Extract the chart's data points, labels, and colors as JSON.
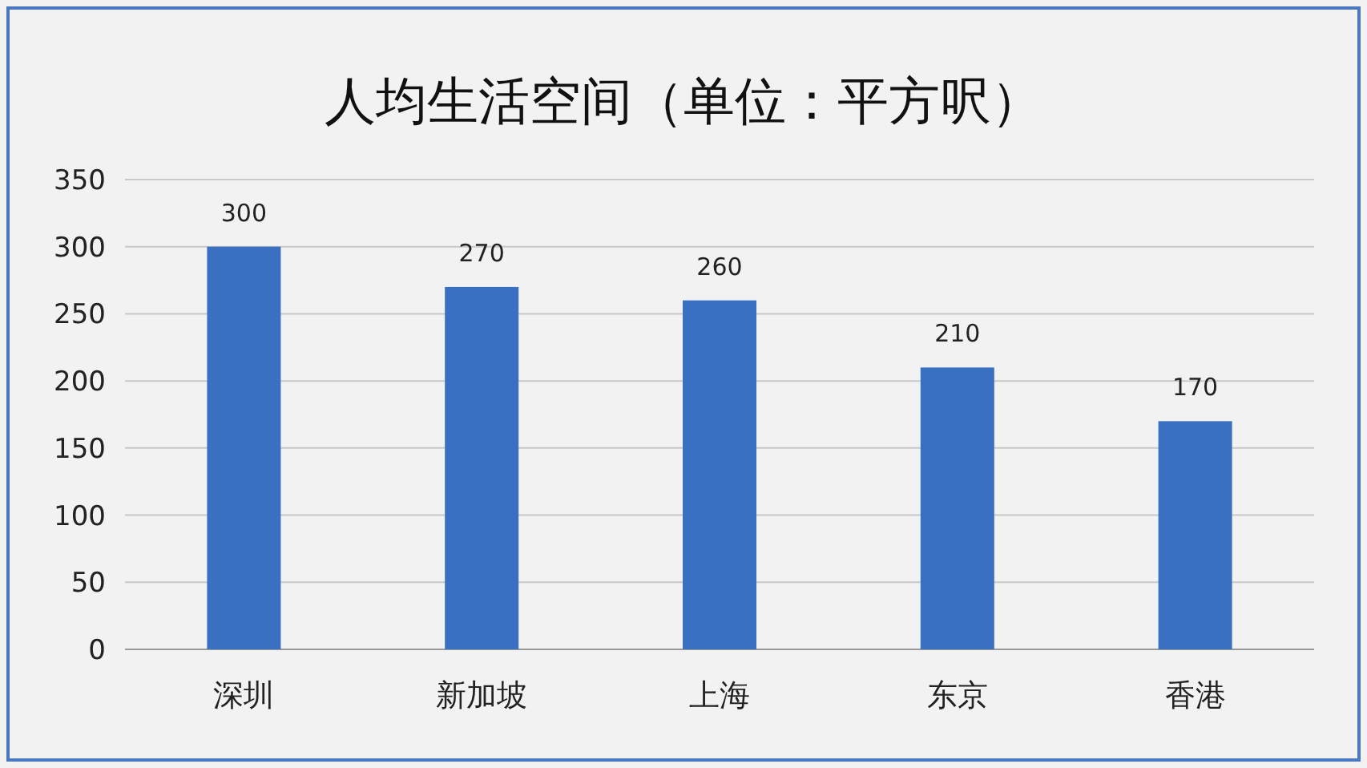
{
  "chart_data": {
    "type": "bar",
    "title": "人均生活空间（单位：平方呎）",
    "categories": [
      "深圳",
      "新加坡",
      "上海",
      "东京",
      "香港"
    ],
    "values": [
      300,
      270,
      260,
      210,
      170
    ],
    "color": "#3a70c2",
    "ylim": [
      0,
      350
    ],
    "yticks": [
      0,
      50,
      100,
      150,
      200,
      250,
      300,
      350
    ],
    "grid": "y",
    "data_labels": true
  }
}
